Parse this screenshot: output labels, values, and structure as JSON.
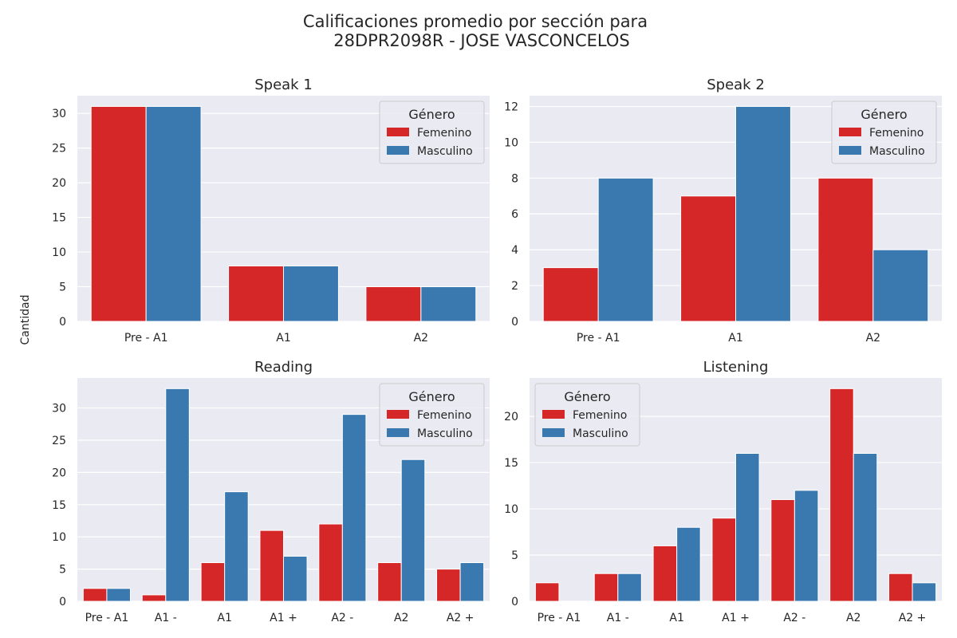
{
  "figure": {
    "title_line1": "Calificaciones promedio por sección para",
    "title_line2": "28DPR2098R - JOSE VASCONCELOS",
    "ylabel": "Cantidad"
  },
  "legend": {
    "title": "Género",
    "items": [
      "Femenino",
      "Masculino"
    ]
  },
  "colors": {
    "Femenino": "#d62728",
    "Masculino": "#3a78b0",
    "background": "#eaeaf2",
    "grid": "#ffffff"
  },
  "chart_data": [
    {
      "type": "bar",
      "title": "Speak 1",
      "categories": [
        "Pre - A1",
        "A1",
        "A2"
      ],
      "series": [
        {
          "name": "Femenino",
          "values": [
            31,
            8,
            5
          ]
        },
        {
          "name": "Masculino",
          "values": [
            31,
            8,
            5
          ]
        }
      ],
      "ylim": [
        0,
        32.55
      ],
      "yticks": [
        0,
        5,
        10,
        15,
        20,
        25,
        30
      ],
      "legend": "upper right",
      "grid": true
    },
    {
      "type": "bar",
      "title": "Speak 2",
      "categories": [
        "Pre - A1",
        "A1",
        "A2"
      ],
      "series": [
        {
          "name": "Femenino",
          "values": [
            3,
            7,
            8
          ]
        },
        {
          "name": "Masculino",
          "values": [
            8,
            12,
            4
          ]
        }
      ],
      "ylim": [
        0,
        12.6
      ],
      "yticks": [
        0,
        2,
        4,
        6,
        8,
        10,
        12
      ],
      "legend": "upper right",
      "grid": true
    },
    {
      "type": "bar",
      "title": "Reading",
      "categories": [
        "Pre - A1",
        "A1 -",
        "A1",
        "A1 +",
        "A2 -",
        "A2",
        "A2 +"
      ],
      "series": [
        {
          "name": "Femenino",
          "values": [
            2,
            1,
            6,
            11,
            12,
            6,
            5
          ]
        },
        {
          "name": "Masculino",
          "values": [
            2,
            33,
            17,
            7,
            29,
            22,
            6
          ]
        }
      ],
      "ylim": [
        0,
        34.65
      ],
      "yticks": [
        0,
        5,
        10,
        15,
        20,
        25,
        30
      ],
      "legend": "upper right",
      "grid": true
    },
    {
      "type": "bar",
      "title": "Listening",
      "categories": [
        "Pre - A1",
        "A1 -",
        "A1",
        "A1 +",
        "A2 -",
        "A2",
        "A2 +"
      ],
      "series": [
        {
          "name": "Femenino",
          "values": [
            2,
            3,
            6,
            9,
            11,
            23,
            3
          ]
        },
        {
          "name": "Masculino",
          "values": [
            0,
            3,
            8,
            16,
            12,
            16,
            2
          ]
        }
      ],
      "ylim": [
        0,
        24.15
      ],
      "yticks": [
        0,
        5,
        10,
        15,
        20
      ],
      "legend": "upper left",
      "grid": true
    }
  ]
}
